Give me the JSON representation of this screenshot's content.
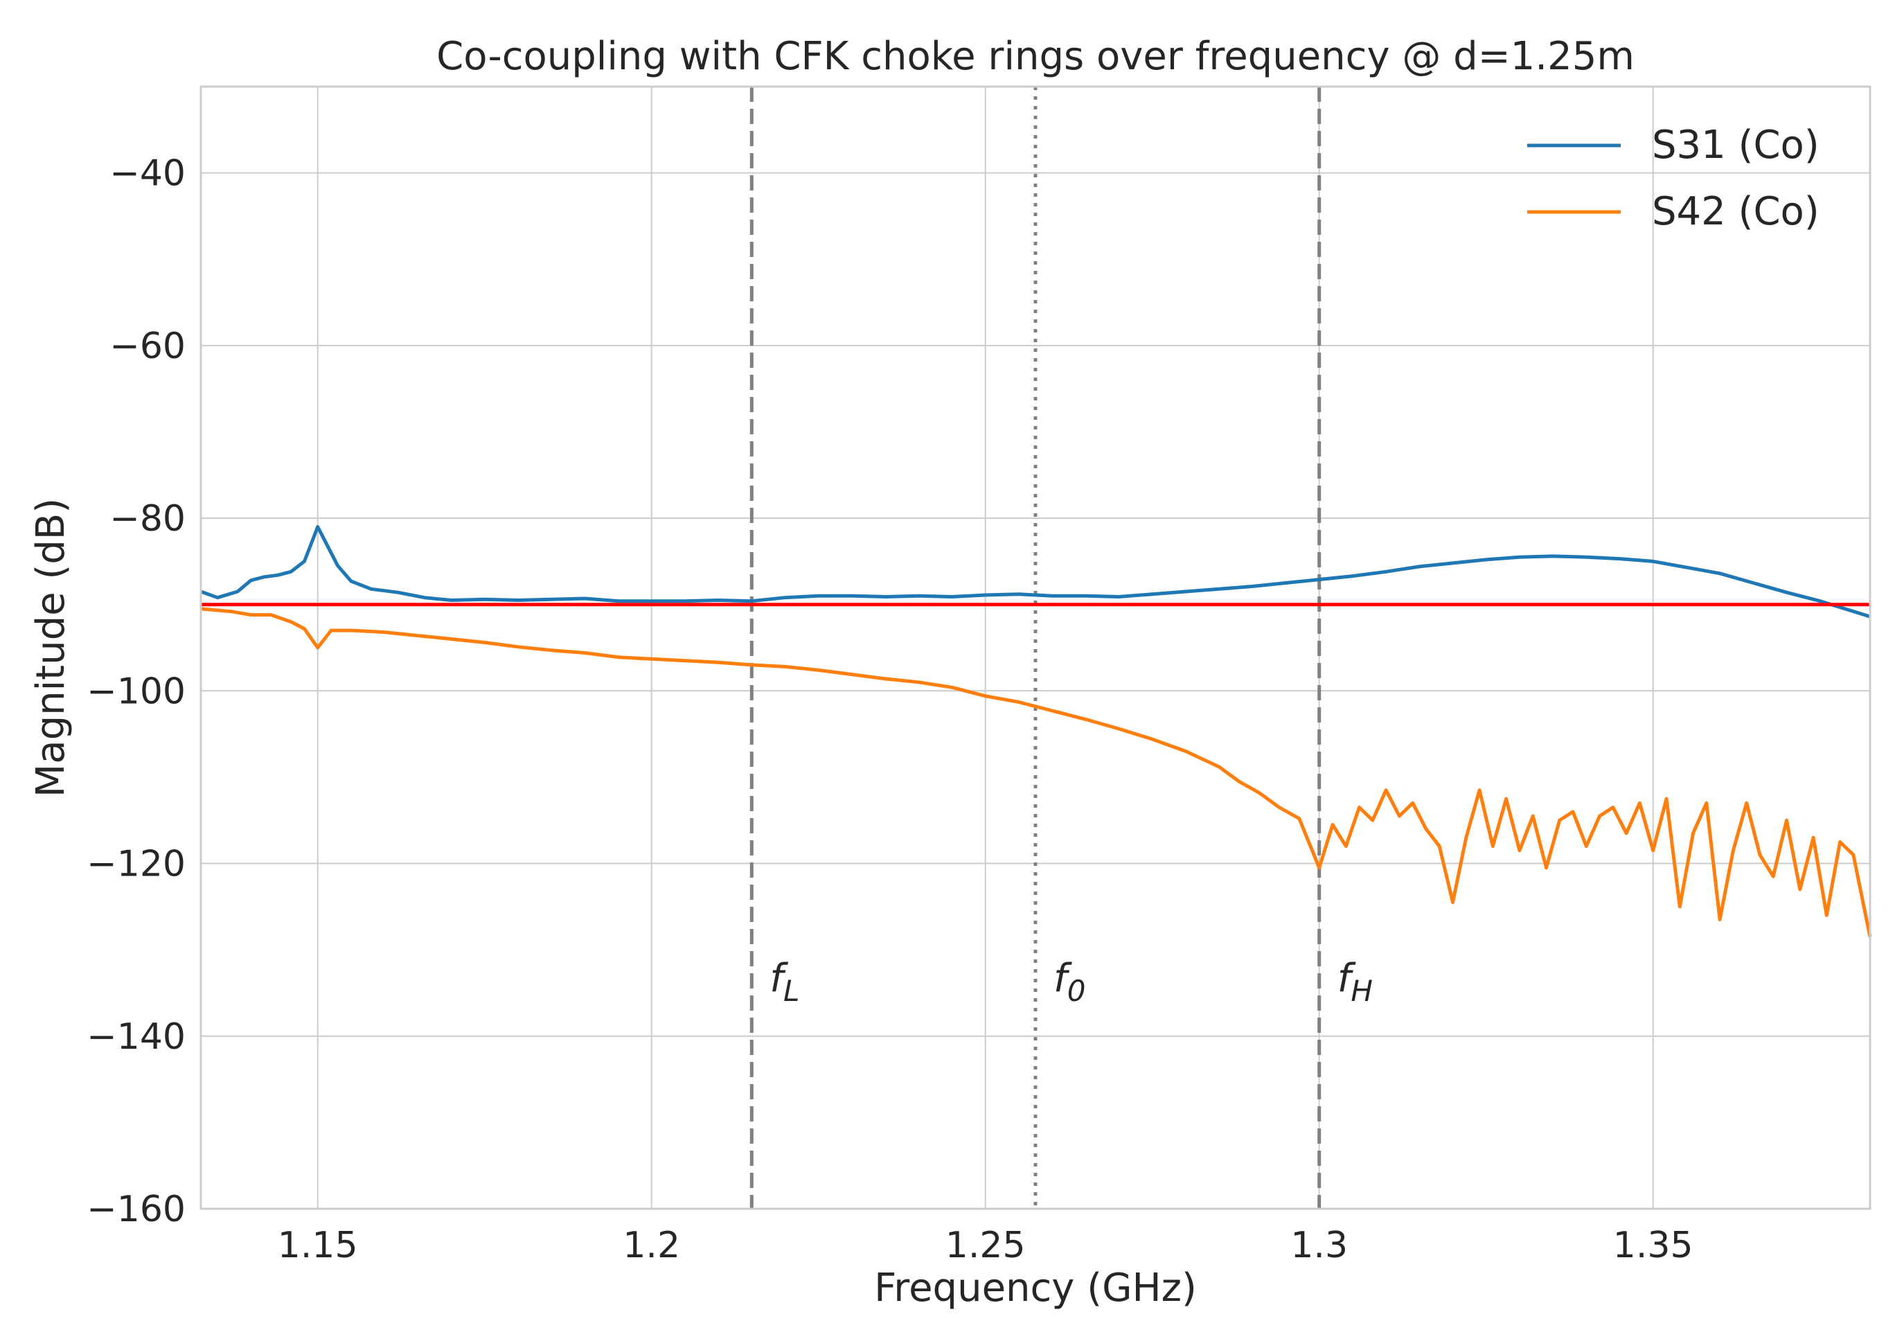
{
  "chart_data": {
    "type": "line",
    "title": "Co-coupling with CFK choke rings over frequency @ d=1.25m",
    "xlabel": "Frequency (GHz)",
    "ylabel": "Magnitude (dB)",
    "xlim": [
      1.1325,
      1.3825
    ],
    "ylim": [
      -160,
      -30
    ],
    "xticks": [
      1.15,
      1.2,
      1.25,
      1.3,
      1.35
    ],
    "xtick_labels": [
      "1.15",
      "1.2",
      "1.25",
      "1.3",
      "1.35"
    ],
    "yticks": [
      -160,
      -140,
      -120,
      -100,
      -80,
      -60,
      -40
    ],
    "ytick_labels": [
      "−160",
      "−140",
      "−120",
      "−100",
      "−80",
      "−60",
      "−40"
    ],
    "grid": true,
    "legend_position": "top-right",
    "series": [
      {
        "name": "S31 (Co)",
        "color": "#1f77b4",
        "x": [
          1.1325,
          1.135,
          1.138,
          1.14,
          1.142,
          1.144,
          1.146,
          1.148,
          1.149,
          1.15,
          1.151,
          1.153,
          1.155,
          1.158,
          1.162,
          1.166,
          1.17,
          1.175,
          1.18,
          1.185,
          1.19,
          1.195,
          1.2,
          1.205,
          1.21,
          1.215,
          1.22,
          1.225,
          1.23,
          1.235,
          1.24,
          1.245,
          1.25,
          1.255,
          1.26,
          1.265,
          1.27,
          1.275,
          1.28,
          1.285,
          1.29,
          1.295,
          1.3,
          1.305,
          1.31,
          1.315,
          1.32,
          1.325,
          1.33,
          1.335,
          1.34,
          1.345,
          1.35,
          1.355,
          1.36,
          1.365,
          1.37,
          1.375,
          1.3825
        ],
        "values": [
          -88.5,
          -89.2,
          -88.5,
          -87.2,
          -86.8,
          -86.6,
          -86.2,
          -85.0,
          -83.0,
          -81.0,
          -82.5,
          -85.5,
          -87.3,
          -88.2,
          -88.6,
          -89.2,
          -89.5,
          -89.4,
          -89.5,
          -89.4,
          -89.3,
          -89.6,
          -89.6,
          -89.6,
          -89.5,
          -89.6,
          -89.2,
          -89.0,
          -89.0,
          -89.1,
          -89.0,
          -89.1,
          -88.9,
          -88.8,
          -89.0,
          -89.0,
          -89.1,
          -88.8,
          -88.5,
          -88.2,
          -87.9,
          -87.5,
          -87.1,
          -86.7,
          -86.2,
          -85.6,
          -85.2,
          -84.8,
          -84.5,
          -84.4,
          -84.5,
          -84.7,
          -85.0,
          -85.7,
          -86.4,
          -87.5,
          -88.6,
          -89.6,
          -91.4
        ]
      },
      {
        "name": "S42 (Co)",
        "color": "#ff7f0e",
        "x": [
          1.1325,
          1.137,
          1.14,
          1.143,
          1.146,
          1.148,
          1.15,
          1.152,
          1.155,
          1.16,
          1.165,
          1.17,
          1.175,
          1.18,
          1.185,
          1.19,
          1.195,
          1.2,
          1.205,
          1.21,
          1.215,
          1.22,
          1.225,
          1.23,
          1.235,
          1.24,
          1.245,
          1.25,
          1.255,
          1.26,
          1.265,
          1.27,
          1.275,
          1.28,
          1.285,
          1.288,
          1.291,
          1.294,
          1.297,
          1.3,
          1.302,
          1.304,
          1.306,
          1.308,
          1.31,
          1.312,
          1.314,
          1.316,
          1.318,
          1.32,
          1.322,
          1.324,
          1.326,
          1.328,
          1.33,
          1.332,
          1.334,
          1.336,
          1.338,
          1.34,
          1.342,
          1.344,
          1.346,
          1.348,
          1.35,
          1.352,
          1.354,
          1.356,
          1.358,
          1.36,
          1.362,
          1.364,
          1.366,
          1.368,
          1.37,
          1.372,
          1.374,
          1.376,
          1.378,
          1.38,
          1.3825
        ],
        "values": [
          -90.5,
          -90.8,
          -91.2,
          -91.2,
          -92.0,
          -92.8,
          -95.0,
          -93.0,
          -93.0,
          -93.2,
          -93.6,
          -94.0,
          -94.4,
          -94.9,
          -95.3,
          -95.6,
          -96.1,
          -96.3,
          -96.5,
          -96.7,
          -97.0,
          -97.2,
          -97.6,
          -98.1,
          -98.6,
          -99.0,
          -99.6,
          -100.6,
          -101.3,
          -102.3,
          -103.3,
          -104.4,
          -105.6,
          -107.0,
          -108.8,
          -110.5,
          -111.8,
          -113.5,
          -114.8,
          -120.5,
          -115.5,
          -118.0,
          -113.5,
          -115.0,
          -111.5,
          -114.5,
          -113.0,
          -116.0,
          -118.0,
          -124.5,
          -117.0,
          -111.5,
          -118.0,
          -112.5,
          -118.5,
          -114.5,
          -120.5,
          -115.0,
          -114.0,
          -118.0,
          -114.5,
          -113.5,
          -116.5,
          -113.0,
          -118.5,
          -112.5,
          -125.0,
          -116.5,
          -113.0,
          -126.5,
          -118.5,
          -113.0,
          -119.0,
          -121.5,
          -115.0,
          -123.0,
          -117.0,
          -126.0,
          -117.5,
          -119.0,
          -128.5
        ]
      }
    ],
    "reference_line": {
      "value": -90,
      "color": "#ff0000"
    },
    "vertical_markers": [
      {
        "x": 1.215,
        "label": "f",
        "subscript": "L",
        "style": "dashed",
        "color": "#808080"
      },
      {
        "x": 1.2575,
        "label": "f",
        "subscript": "0",
        "style": "dotted",
        "color": "#808080"
      },
      {
        "x": 1.3,
        "label": "f",
        "subscript": "H",
        "style": "dashed",
        "color": "#808080"
      }
    ]
  }
}
